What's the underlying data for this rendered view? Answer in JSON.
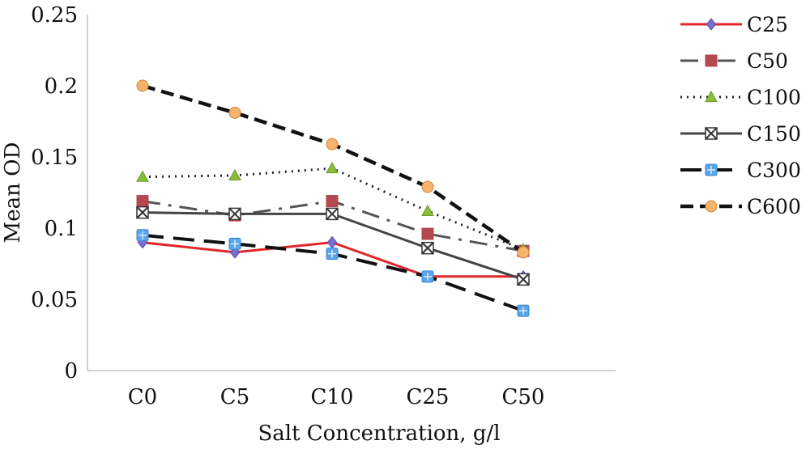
{
  "chart_data": {
    "type": "line",
    "categories": [
      "C0",
      "C5",
      "C10",
      "C25",
      "C50"
    ],
    "xlabel": "Salt Concentration, g/l",
    "ylabel": "Mean OD",
    "ylim": [
      0,
      0.25
    ],
    "yticks": [
      "0",
      "0.05",
      "0.1",
      "0.15",
      "0.2",
      "0.25"
    ],
    "grid": false,
    "legend_position": "right",
    "series": [
      {
        "name": "C25",
        "color": "#e0262b",
        "style": "solid",
        "marker": "diamond",
        "values": [
          0.09,
          0.083,
          0.09,
          0.066,
          0.066
        ]
      },
      {
        "name": "C50",
        "color": "#555555",
        "style": "dashdot",
        "marker": "square",
        "marker_color": "#b5484f",
        "values": [
          0.119,
          0.109,
          0.119,
          0.096,
          0.084
        ]
      },
      {
        "name": "C100",
        "color": "#222222",
        "style": "dotted",
        "marker": "triangle",
        "marker_color": "#8bbd3c",
        "values": [
          0.136,
          0.137,
          0.142,
          0.112,
          0.085
        ]
      },
      {
        "name": "C150",
        "color": "#444444",
        "style": "solid",
        "marker": "xbox",
        "marker_color": "#555555",
        "values": [
          0.111,
          0.11,
          0.11,
          0.086,
          0.064
        ]
      },
      {
        "name": "C300",
        "color": "#111111",
        "style": "longdash",
        "marker": "plusbox",
        "marker_color": "#5aa5e8",
        "values": [
          0.095,
          0.089,
          0.082,
          0.066,
          0.042
        ]
      },
      {
        "name": "C600",
        "color": "#111111",
        "style": "dashed",
        "marker": "circle",
        "marker_color": "#f5b36b",
        "values": [
          0.2,
          0.181,
          0.159,
          0.129,
          0.083
        ]
      }
    ]
  }
}
